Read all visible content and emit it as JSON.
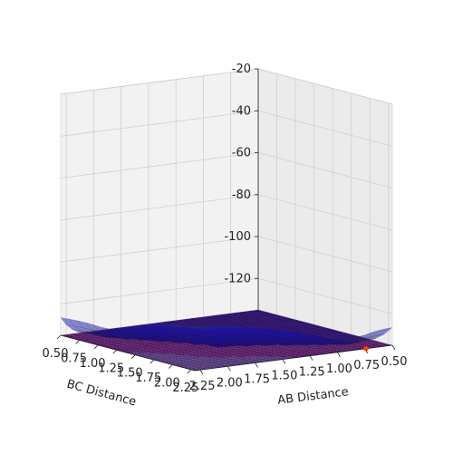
{
  "chart_data": {
    "type": "surface3d",
    "title": "",
    "xlabel": "AB Distance",
    "ylabel": "BC Distance",
    "zlabel": "",
    "x_range": [
      0.5,
      2.3
    ],
    "y_range": [
      0.5,
      2.3
    ],
    "z_range": [
      -135,
      -20
    ],
    "xticks": [
      "0.50",
      "0.75",
      "1.00",
      "1.25",
      "1.50",
      "1.75",
      "2.00",
      "2.25"
    ],
    "yticks": [
      "0.50",
      "0.75",
      "1.00",
      "1.25",
      "1.50",
      "1.75",
      "2.00",
      "2.25"
    ],
    "zticks": [
      "-20",
      "-40",
      "-60",
      "-80",
      "-100",
      "-120"
    ],
    "colormap_surface": "jet",
    "colormap_contour": "viridis",
    "grid": true,
    "marked_point": {
      "x": 0.74,
      "y": 2.3,
      "color": "#ff3b00"
    }
  }
}
